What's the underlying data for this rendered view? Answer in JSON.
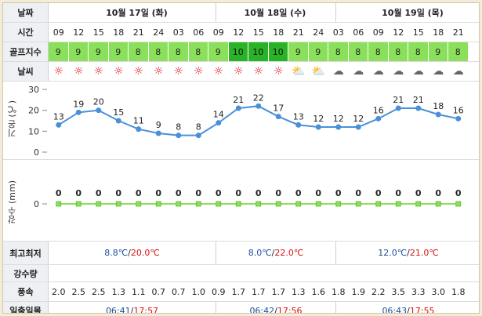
{
  "labels": {
    "date": "날짜",
    "time": "시간",
    "golf_index": "골프지수",
    "weather": "날씨",
    "temp_axis": "기온 (℃)",
    "rain_axis": "강수 (mm)",
    "minmax": "최고최저",
    "precip": "강수량",
    "wind": "풍속",
    "sunrise": "일출일몰"
  },
  "days": [
    {
      "label": "10월 17일 (화)",
      "minmax_lo": "8.8℃",
      "sep": "/",
      "minmax_hi": "20.0℃",
      "sunrise": "06:41",
      "sunset": "17:57"
    },
    {
      "label": "10월 18일 (수)",
      "minmax_lo": "8.0℃",
      "sep": "/",
      "minmax_hi": "22.0℃",
      "sunrise": "06:42",
      "sunset": "17:56"
    },
    {
      "label": "10월 19일 (목)",
      "minmax_lo": "12.0℃",
      "sep": "/",
      "minmax_hi": "21.0℃",
      "sunrise": "06:43",
      "sunset": "17:55"
    }
  ],
  "times": [
    "09",
    "12",
    "15",
    "18",
    "21",
    "24",
    "03",
    "06",
    "09",
    "12",
    "15",
    "18",
    "21",
    "24",
    "03",
    "06",
    "09",
    "12",
    "15",
    "18",
    "21"
  ],
  "golf": [
    "9",
    "9",
    "9",
    "9",
    "8",
    "8",
    "8",
    "8",
    "9",
    "10",
    "10",
    "10",
    "9",
    "9",
    "8",
    "8",
    "8",
    "8",
    "8",
    "9",
    "8"
  ],
  "weather_icons": [
    "sun",
    "sun",
    "sun",
    "sun",
    "sun",
    "sun",
    "sun",
    "sun",
    "sun",
    "sun",
    "sun",
    "sun",
    "partly-cloudy",
    "partly-cloudy",
    "cloudy",
    "cloudy",
    "cloudy",
    "cloudy",
    "cloudy",
    "cloudy",
    "cloudy"
  ],
  "wind": [
    "2.0",
    "2.5",
    "2.5",
    "1.3",
    "1.1",
    "0.7",
    "0.7",
    "1.0",
    "0.9",
    "1.7",
    "1.7",
    "1.7",
    "1.3",
    "1.6",
    "1.8",
    "1.9",
    "2.2",
    "3.5",
    "3.3",
    "3.0",
    "1.8"
  ],
  "colors": {
    "golf_light": "#8ae05a",
    "golf_dark": "#29b327",
    "line": "#4a90d9",
    "rain": "#8ae05a",
    "sun": "#dd1111"
  },
  "chart_data": [
    {
      "type": "line",
      "name": "temperature",
      "ylabel": "기온 (℃)",
      "yticks": [
        0,
        10,
        20,
        30
      ],
      "ylim": [
        0,
        30
      ],
      "x": [
        "09",
        "12",
        "15",
        "18",
        "21",
        "24",
        "03",
        "06",
        "09",
        "12",
        "15",
        "18",
        "21",
        "24",
        "03",
        "06",
        "09",
        "12",
        "15",
        "18",
        "21"
      ],
      "values": [
        13,
        19,
        20,
        15,
        11,
        9,
        8,
        8,
        14,
        21,
        22,
        17,
        13,
        12,
        12,
        12,
        16,
        21,
        21,
        18,
        16
      ]
    },
    {
      "type": "line",
      "name": "precipitation",
      "ylabel": "강수 (mm)",
      "yticks": [
        0
      ],
      "x": [
        "09",
        "12",
        "15",
        "18",
        "21",
        "24",
        "03",
        "06",
        "09",
        "12",
        "15",
        "18",
        "21",
        "24",
        "03",
        "06",
        "09",
        "12",
        "15",
        "18",
        "21"
      ],
      "values": [
        0,
        0,
        0,
        0,
        0,
        0,
        0,
        0,
        0,
        0,
        0,
        0,
        0,
        0,
        0,
        0,
        0,
        0,
        0,
        0,
        0
      ]
    }
  ]
}
